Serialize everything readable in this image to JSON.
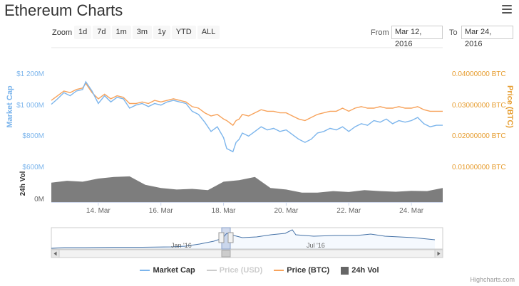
{
  "header": {
    "title": "Ethereum Charts"
  },
  "toolbar": {
    "zoom_label": "Zoom",
    "zoom_buttons": [
      "1d",
      "7d",
      "1m",
      "3m",
      "1y",
      "YTD",
      "ALL"
    ],
    "from_label": "From",
    "from_value": "Mar 12, 2016",
    "to_label": "To",
    "to_value": "Mar 24, 2016"
  },
  "chart_data": {
    "type": "line",
    "x_range": [
      "2016-03-12T12:00",
      "2016-03-25T00:00"
    ],
    "x_ticks": [
      "14. Mar",
      "16. Mar",
      "18. Mar",
      "20. Mar",
      "22. Mar",
      "24. Mar"
    ],
    "left_axis": {
      "title": "Market Cap",
      "ticks": [
        "$1 200M",
        "$1 000M",
        "$800M",
        "$600M"
      ],
      "ylim": [
        600,
        1200
      ],
      "unit": "$M"
    },
    "right_axis": {
      "title": "Price (BTC)",
      "ticks": [
        "0.04000000 BTC",
        "0.03000000 BTC",
        "0.02000000 BTC",
        "0.01000000 BTC"
      ],
      "ylim": [
        0.01,
        0.04
      ]
    },
    "volume_axis": {
      "title": "24h Vol",
      "ticks": [
        "0M"
      ]
    },
    "series": [
      {
        "name": "Market Cap",
        "color": "#7cb5ec",
        "axis": "left",
        "x": [
          12.5,
          12.7,
          12.9,
          13.1,
          13.3,
          13.5,
          13.6,
          13.8,
          14.0,
          14.2,
          14.4,
          14.6,
          14.8,
          15.0,
          15.2,
          15.4,
          15.6,
          15.8,
          16.0,
          16.2,
          16.4,
          16.6,
          16.8,
          17.0,
          17.2,
          17.4,
          17.6,
          17.8,
          18.0,
          18.1,
          18.3,
          18.4,
          18.5,
          18.6,
          18.8,
          19.0,
          19.2,
          19.4,
          19.6,
          19.8,
          20.0,
          20.2,
          20.4,
          20.6,
          20.8,
          21.0,
          21.2,
          21.4,
          21.6,
          21.8,
          22.0,
          22.2,
          22.4,
          22.6,
          22.8,
          23.0,
          23.2,
          23.4,
          23.6,
          23.8,
          24.0,
          24.2,
          24.4,
          24.6,
          24.8,
          25.0
        ],
        "values": [
          1005,
          1040,
          1080,
          1060,
          1090,
          1100,
          1150,
          1090,
          1010,
          1060,
          1020,
          1050,
          1040,
          980,
          1000,
          1010,
          990,
          1010,
          1000,
          1020,
          1030,
          1020,
          1010,
          960,
          940,
          890,
          830,
          860,
          790,
          720,
          700,
          760,
          780,
          820,
          800,
          830,
          860,
          840,
          850,
          830,
          840,
          810,
          780,
          760,
          780,
          820,
          830,
          850,
          840,
          860,
          830,
          860,
          880,
          870,
          900,
          890,
          910,
          880,
          900,
          890,
          900,
          920,
          880,
          860,
          870,
          870
        ]
      },
      {
        "name": "Price (USD)",
        "color": "#cccccc",
        "axis": "left",
        "visible": false,
        "values": []
      },
      {
        "name": "Price (BTC)",
        "color": "#f7a35c",
        "axis": "right",
        "x": [
          12.5,
          12.7,
          12.9,
          13.1,
          13.3,
          13.5,
          13.6,
          13.8,
          14.0,
          14.2,
          14.4,
          14.6,
          14.8,
          15.0,
          15.2,
          15.4,
          15.6,
          15.8,
          16.0,
          16.2,
          16.4,
          16.6,
          16.8,
          17.0,
          17.2,
          17.4,
          17.6,
          17.8,
          18.0,
          18.1,
          18.3,
          18.4,
          18.5,
          18.6,
          18.8,
          19.0,
          19.2,
          19.4,
          19.6,
          19.8,
          20.0,
          20.2,
          20.4,
          20.6,
          20.8,
          21.0,
          21.2,
          21.4,
          21.6,
          21.8,
          22.0,
          22.2,
          22.4,
          22.6,
          22.8,
          23.0,
          23.2,
          23.4,
          23.6,
          23.8,
          24.0,
          24.2,
          24.4,
          24.6,
          24.8,
          25.0
        ],
        "values": [
          0.0315,
          0.033,
          0.0345,
          0.034,
          0.035,
          0.0355,
          0.037,
          0.034,
          0.032,
          0.0335,
          0.032,
          0.033,
          0.0325,
          0.0305,
          0.0305,
          0.031,
          0.0305,
          0.0315,
          0.031,
          0.0315,
          0.032,
          0.0315,
          0.031,
          0.0295,
          0.029,
          0.0275,
          0.0265,
          0.027,
          0.0255,
          0.025,
          0.0235,
          0.025,
          0.0255,
          0.027,
          0.0265,
          0.0275,
          0.0285,
          0.028,
          0.028,
          0.0275,
          0.0275,
          0.0265,
          0.0255,
          0.025,
          0.026,
          0.027,
          0.0275,
          0.028,
          0.028,
          0.029,
          0.028,
          0.029,
          0.0295,
          0.029,
          0.029,
          0.0295,
          0.029,
          0.029,
          0.0295,
          0.029,
          0.029,
          0.0295,
          0.0285,
          0.028,
          0.028,
          0.028
        ]
      },
      {
        "name": "24h Vol",
        "color": "#666666",
        "type": "area",
        "x": [
          12.5,
          13.0,
          13.5,
          14.0,
          14.5,
          15.0,
          15.5,
          16.0,
          16.5,
          17.0,
          17.5,
          18.0,
          18.5,
          19.0,
          19.5,
          20.0,
          20.5,
          21.0,
          21.5,
          22.0,
          22.5,
          23.0,
          23.5,
          24.0,
          24.5,
          25.0
        ],
        "values": [
          0.62,
          0.68,
          0.65,
          0.75,
          0.8,
          0.82,
          0.55,
          0.45,
          0.4,
          0.42,
          0.38,
          0.65,
          0.7,
          0.8,
          0.45,
          0.4,
          0.3,
          0.3,
          0.35,
          0.32,
          0.38,
          0.35,
          0.33,
          0.36,
          0.35,
          0.45
        ]
      }
    ],
    "navigator": {
      "labels": [
        "Jan '16",
        "Jul '16"
      ]
    }
  },
  "legend": {
    "items": [
      {
        "label": "Market Cap",
        "color": "#7cb5ec",
        "kind": "line",
        "active": true
      },
      {
        "label": "Price (USD)",
        "color": "#cccccc",
        "kind": "line",
        "active": false
      },
      {
        "label": "Price (BTC)",
        "color": "#f7a35c",
        "kind": "line",
        "active": true
      },
      {
        "label": "24h Vol",
        "color": "#666666",
        "kind": "box",
        "active": true
      }
    ]
  },
  "credits": "Highcharts.com"
}
